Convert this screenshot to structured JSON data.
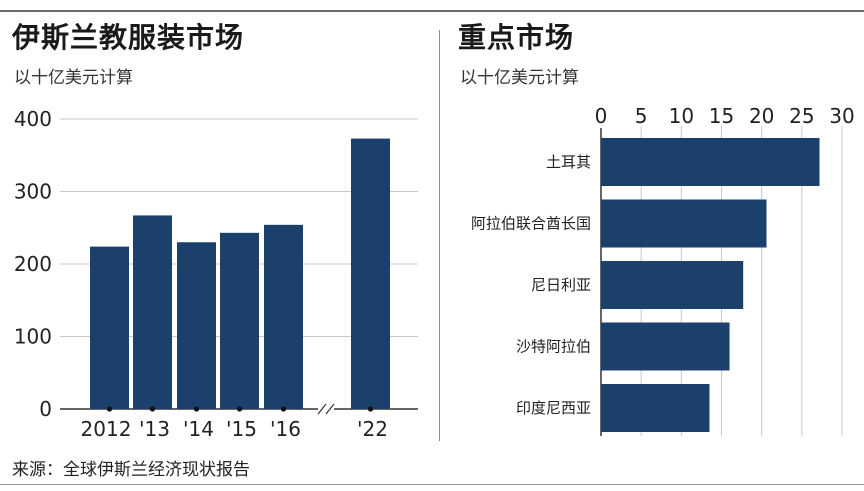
{
  "left_panel": {
    "title": "伊斯兰教服装市场",
    "subtitle": "以十亿美元计算"
  },
  "right_panel": {
    "title": "重点市场",
    "subtitle": "以十亿美元计算"
  },
  "source": "来源：全球伊斯兰经济现状报告",
  "colors": {
    "bar": "#1b406c",
    "grid": "#c8c8c8"
  },
  "chart_data": [
    {
      "type": "bar",
      "title": "伊斯兰教服装市场",
      "subtitle": "以十亿美元计算",
      "categories": [
        "2012",
        "'13",
        "'14",
        "'15",
        "'16",
        "'22"
      ],
      "values": [
        224,
        267,
        230,
        243,
        254,
        373
      ],
      "ylim": [
        0,
        400
      ],
      "yticks": [
        0,
        100,
        200,
        300,
        400
      ],
      "axis_break_after": "'16",
      "grid": true
    },
    {
      "type": "bar",
      "orientation": "horizontal",
      "title": "重点市场",
      "subtitle": "以十亿美元计算",
      "categories": [
        "土耳其",
        "阿拉伯联合酋长国",
        "尼日利亚",
        "沙特阿拉伯",
        "印度尼西亚"
      ],
      "values": [
        27.2,
        20.6,
        17.7,
        16.0,
        13.5
      ],
      "xlim": [
        0,
        30
      ],
      "xticks": [
        0,
        5,
        10,
        15,
        20,
        25,
        30
      ],
      "grid": true
    }
  ]
}
